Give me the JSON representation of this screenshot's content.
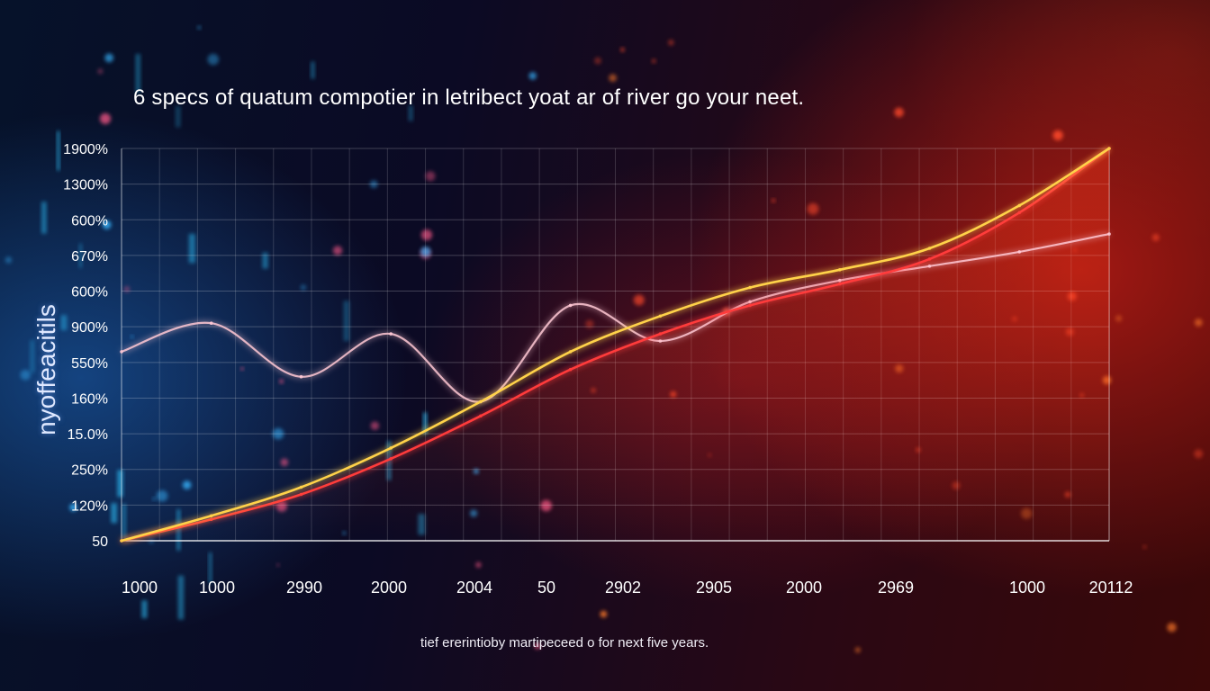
{
  "chart_data": {
    "type": "line",
    "title": "6 specs of quatum compotier in letribect yoat ar of river go your neet.",
    "ylabel": "nyoffeacitils",
    "caption": "tief ererintioby martipeceed o for next five years.",
    "y_tick_labels": [
      "1900%",
      "1300%",
      "600%",
      "670%",
      "600%",
      "900%",
      "550%",
      "160%",
      "15.0%",
      "250%",
      "120%",
      "50"
    ],
    "x_tick_labels": [
      "1000",
      "1000",
      "2990",
      "2000",
      "2004",
      "50",
      "2902",
      "2905",
      "2000",
      "2969",
      "1000",
      "20112"
    ],
    "grid": true,
    "series": [
      {
        "color": "#ffd24a",
        "values": [
          0.0,
          0.7,
          1.5,
          2.6,
          3.9,
          5.3,
          6.3,
          7.1,
          7.6,
          8.2,
          9.4,
          11.0
        ]
      },
      {
        "color": "#ff3b3b",
        "values": [
          0.0,
          0.6,
          1.3,
          2.3,
          3.5,
          4.8,
          5.8,
          6.6,
          7.2,
          7.9,
          9.2,
          11.0
        ]
      },
      {
        "color": "#ffc8d4",
        "values": [
          5.3,
          6.1,
          4.6,
          5.8,
          3.9,
          6.6,
          5.6,
          6.7,
          7.3,
          7.7,
          8.1,
          8.6
        ]
      }
    ],
    "colors": {
      "accent_left": "#1e6ec8",
      "accent_right": "#ff3b1e",
      "grid": "#ffffff"
    }
  }
}
